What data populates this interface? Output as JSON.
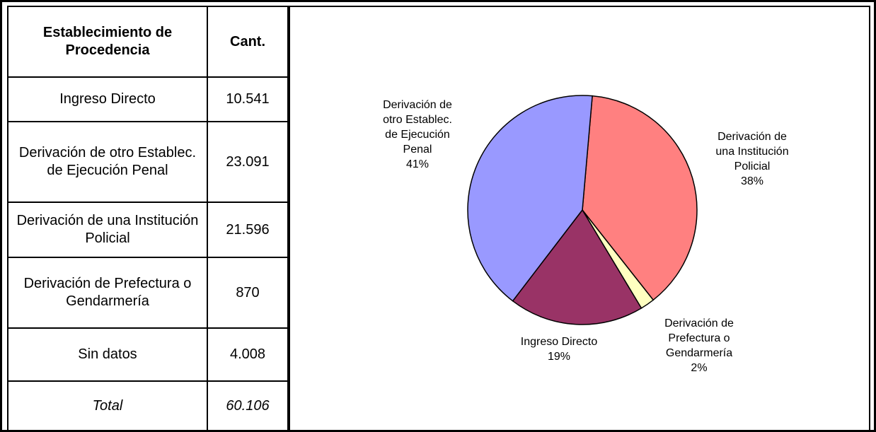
{
  "table": {
    "header": [
      "Establecimiento de Procedencia",
      "Cant."
    ],
    "rows": [
      [
        "Ingreso Directo",
        "10.541"
      ],
      [
        "Derivación de otro Establec. de Ejecución Penal",
        "23.091"
      ],
      [
        "Derivación de una Institución Policial",
        "21.596"
      ],
      [
        "Derivación de Prefectura o Gendarmería",
        "870"
      ],
      [
        "Sin datos",
        "4.008"
      ],
      [
        "Total",
        "60.106"
      ]
    ]
  },
  "chart_data": {
    "type": "pie",
    "categories": [
      "Derivación de\nuna Institución\nPolicial",
      "Derivación de\nPrefectura o\nGendarmería",
      "Ingreso Directo",
      "Derivación de\notro Establec.\nde Ejecución\nPenal"
    ],
    "values": [
      38,
      2,
      19,
      41
    ],
    "value_labels": [
      "38%",
      "2%",
      "19%",
      "41%"
    ],
    "colors": [
      "#ff8080",
      "#ffffc0",
      "#993366",
      "#9999ff"
    ]
  }
}
